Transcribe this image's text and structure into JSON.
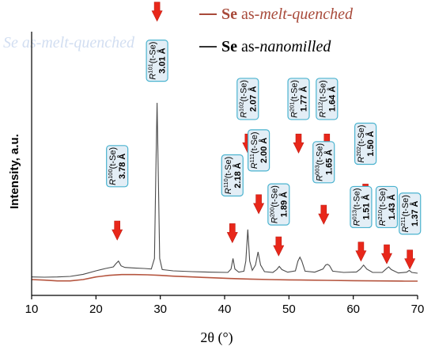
{
  "chart_data": {
    "type": "line",
    "xlabel": "2θ (°)",
    "ylabel": "Intensity, a.u.",
    "xlim": [
      10,
      70
    ],
    "ylim": [
      0,
      1
    ],
    "x_ticks": [
      "10",
      "20",
      "30",
      "40",
      "50",
      "60",
      "70"
    ],
    "grid": false,
    "legend_placement": "top-right",
    "legend": [
      {
        "bold": "Se",
        "plain": " as-",
        "italic": "melt-quenched",
        "color": "#a84a3a"
      },
      {
        "bold": "Se",
        "plain": " as-",
        "italic": "nanomilled",
        "color": "#333333"
      }
    ],
    "series": [
      {
        "name": "Se as-melt-quenched",
        "color": "#b5553f",
        "points": [
          [
            10,
            0.06
          ],
          [
            12,
            0.058
          ],
          [
            14,
            0.055
          ],
          [
            16,
            0.055
          ],
          [
            18,
            0.06
          ],
          [
            20,
            0.07
          ],
          [
            22,
            0.076
          ],
          [
            24,
            0.079
          ],
          [
            26,
            0.079
          ],
          [
            28,
            0.078
          ],
          [
            30,
            0.076
          ],
          [
            32,
            0.073
          ],
          [
            35,
            0.07
          ],
          [
            38,
            0.067
          ],
          [
            41,
            0.064
          ],
          [
            44,
            0.062
          ],
          [
            47,
            0.06
          ],
          [
            50,
            0.059
          ],
          [
            53,
            0.058
          ],
          [
            56,
            0.057
          ],
          [
            60,
            0.056
          ],
          [
            64,
            0.055
          ],
          [
            68,
            0.054
          ],
          [
            70,
            0.054
          ]
        ]
      },
      {
        "name": "Se as-nanomilled",
        "color": "#4a4a4a",
        "points": [
          [
            10,
            0.07
          ],
          [
            12,
            0.069
          ],
          [
            14,
            0.07
          ],
          [
            16,
            0.072
          ],
          [
            18,
            0.08
          ],
          [
            20,
            0.093
          ],
          [
            21.5,
            0.102
          ],
          [
            22.7,
            0.108
          ],
          [
            23.1,
            0.12
          ],
          [
            23.5,
            0.13
          ],
          [
            23.9,
            0.112
          ],
          [
            24.5,
            0.106
          ],
          [
            26,
            0.104
          ],
          [
            27.5,
            0.102
          ],
          [
            28.6,
            0.1
          ],
          [
            29.1,
            0.14
          ],
          [
            29.3,
            0.46
          ],
          [
            29.5,
            0.73
          ],
          [
            29.7,
            0.45
          ],
          [
            29.9,
            0.14
          ],
          [
            30.3,
            0.098
          ],
          [
            32,
            0.093
          ],
          [
            35,
            0.09
          ],
          [
            38,
            0.088
          ],
          [
            40.5,
            0.087
          ],
          [
            41,
            0.1
          ],
          [
            41.3,
            0.14
          ],
          [
            41.6,
            0.1
          ],
          [
            42.2,
            0.088
          ],
          [
            43,
            0.092
          ],
          [
            43.3,
            0.13
          ],
          [
            43.6,
            0.25
          ],
          [
            43.9,
            0.13
          ],
          [
            44.3,
            0.095
          ],
          [
            44.8,
            0.115
          ],
          [
            45.2,
            0.165
          ],
          [
            45.6,
            0.115
          ],
          [
            46.2,
            0.09
          ],
          [
            47.5,
            0.087
          ],
          [
            48.1,
            0.098
          ],
          [
            48.5,
            0.11
          ],
          [
            48.9,
            0.098
          ],
          [
            49.8,
            0.088
          ],
          [
            51,
            0.093
          ],
          [
            51.4,
            0.13
          ],
          [
            51.7,
            0.145
          ],
          [
            52,
            0.13
          ],
          [
            52.5,
            0.092
          ],
          [
            54,
            0.088
          ],
          [
            55.3,
            0.1
          ],
          [
            55.7,
            0.115
          ],
          [
            56.0,
            0.118
          ],
          [
            56.3,
            0.113
          ],
          [
            56.8,
            0.092
          ],
          [
            58.5,
            0.087
          ],
          [
            60.5,
            0.089
          ],
          [
            61.1,
            0.1
          ],
          [
            61.6,
            0.115
          ],
          [
            62.1,
            0.1
          ],
          [
            63,
            0.087
          ],
          [
            64.5,
            0.087
          ],
          [
            65.1,
            0.1
          ],
          [
            65.5,
            0.108
          ],
          [
            65.9,
            0.098
          ],
          [
            67,
            0.085
          ],
          [
            68.3,
            0.088
          ],
          [
            68.7,
            0.095
          ],
          [
            69.1,
            0.087
          ],
          [
            70,
            0.084
          ]
        ]
      }
    ],
    "annotations": [
      {
        "id": "r100",
        "sup": "100",
        "label_pre": "R",
        "label_post": "(t-Se)",
        "value": "3.78 Å",
        "x": 23.3,
        "arrow_y": 0.21,
        "box_y": 0.49
      },
      {
        "id": "r101",
        "sup": "101",
        "label_pre": "R",
        "label_post": "(t-Se)",
        "value": "3.01 Å",
        "x": 29.5,
        "arrow_y": 1.04,
        "box_y": 0.89
      },
      {
        "id": "r110",
        "sup": "110",
        "label_pre": "R",
        "label_post": "(t-Se)",
        "value": "2.18 Å",
        "x": 41.2,
        "arrow_y": 0.2,
        "box_y": 0.455
      },
      {
        "id": "r102",
        "sup": "102",
        "label_pre": "R",
        "label_post": "(t-Se)",
        "value": "2.07 Å",
        "x": 43.6,
        "arrow_y": 0.54,
        "box_y": 0.745
      },
      {
        "id": "r111",
        "sup": "111",
        "label_pre": "R",
        "label_post": "(t-Se)",
        "value": "2.00 Å",
        "x": 45.3,
        "arrow_y": 0.31,
        "box_y": 0.55
      },
      {
        "id": "r200",
        "sup": "200",
        "label_pre": "R",
        "label_post": "(t-Se)",
        "value": "1.89 Å",
        "x": 48.4,
        "arrow_y": 0.15,
        "box_y": 0.345
      },
      {
        "id": "r201",
        "sup": "201",
        "label_pre": "R",
        "label_post": "(t-Se)",
        "value": "1.77 Å",
        "x": 51.5,
        "arrow_y": 0.54,
        "box_y": 0.745
      },
      {
        "id": "r112",
        "sup": "112",
        "label_pre": "R",
        "label_post": "(t-Se)",
        "value": "1.64 Å",
        "x": 55.9,
        "arrow_y": 0.54,
        "box_y": 0.745
      },
      {
        "id": "r003",
        "sup": "003",
        "label_pre": "R",
        "label_post": "(t-Se)",
        "value": "1.65 Å",
        "x": 55.4,
        "arrow_y": 0.27,
        "box_y": 0.505
      },
      {
        "id": "r202",
        "sup": "202",
        "label_pre": "R",
        "label_post": "(t-Se)",
        "value": "1.50 Å",
        "x": 61.9,
        "arrow_y": 0.35,
        "box_y": 0.575
      },
      {
        "id": "r013",
        "sup": "013",
        "label_pre": "R",
        "label_post": "(t-Se)",
        "value": "1.51 Å",
        "x": 61.2,
        "arrow_y": 0.13,
        "box_y": 0.335
      },
      {
        "id": "r210",
        "sup": "210",
        "label_pre": "R",
        "label_post": "(t-Se)",
        "value": "1.43 Å",
        "x": 65.2,
        "arrow_y": 0.12,
        "box_y": 0.335
      },
      {
        "id": "r211",
        "sup": "211",
        "label_pre": "R",
        "label_post": "(t-Se)",
        "value": "1.37 Å",
        "x": 68.8,
        "arrow_y": 0.1,
        "box_y": 0.31
      }
    ],
    "ghost_text": "Se as-melt-quenched"
  }
}
